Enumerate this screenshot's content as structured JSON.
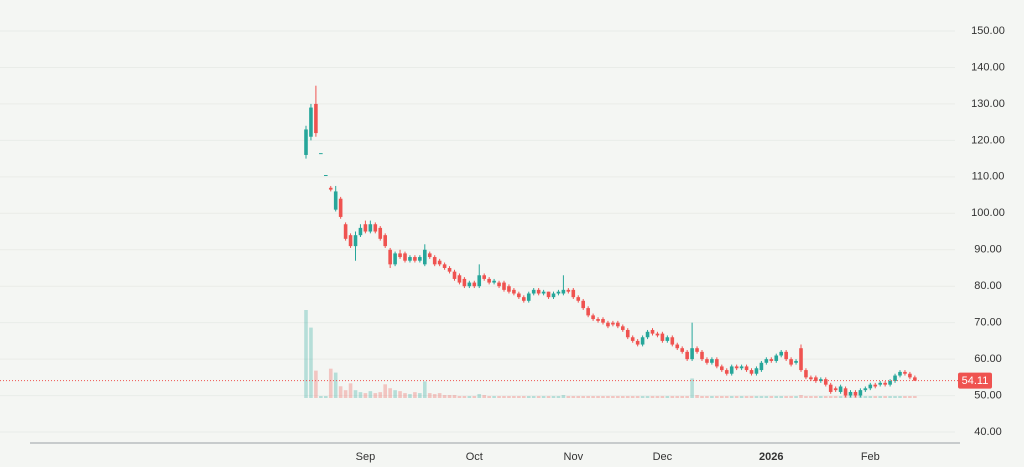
{
  "chart_data": {
    "type": "candlestick",
    "categories": [
      null,
      null,
      null,
      null,
      null,
      null,
      null,
      null,
      null,
      null,
      null,
      null,
      "Sep",
      null,
      null,
      null,
      null,
      null,
      null,
      null,
      null,
      null,
      null,
      null,
      null,
      null,
      null,
      null,
      null,
      null,
      null,
      null,
      null,
      null,
      "Oct",
      null,
      null,
      null,
      null,
      null,
      null,
      null,
      null,
      null,
      null,
      null,
      null,
      null,
      null,
      null,
      null,
      null,
      null,
      null,
      "Nov",
      null,
      null,
      null,
      null,
      null,
      null,
      null,
      null,
      null,
      null,
      null,
      null,
      null,
      null,
      null,
      null,
      null,
      "Dec",
      null,
      null,
      null,
      null,
      null,
      null,
      null,
      null,
      null,
      null,
      null,
      null,
      null,
      null,
      null,
      null,
      null,
      null,
      null,
      null,
      null,
      "2026",
      null,
      null,
      null,
      null,
      null,
      null,
      null,
      null,
      null,
      null,
      null,
      null,
      null,
      null,
      null,
      null,
      null,
      null,
      null,
      "Feb",
      null,
      null,
      null,
      null,
      null,
      null,
      null,
      null,
      null
    ],
    "open": [
      116,
      121,
      130,
      116.5,
      110.5,
      107,
      101,
      104,
      97,
      94,
      91,
      94,
      97,
      95,
      97,
      96,
      94,
      90,
      86,
      89,
      89,
      87,
      88,
      87,
      86,
      89,
      88,
      87,
      86,
      85,
      84,
      83,
      82,
      80,
      81,
      80,
      83,
      82,
      81,
      81,
      81,
      80,
      79,
      78,
      77,
      76,
      78,
      79,
      78,
      78.5,
      77,
      78,
      78,
      79,
      79,
      77,
      76,
      74,
      72,
      71,
      71,
      70,
      70,
      70,
      69,
      68,
      66,
      65,
      64,
      66,
      68,
      67,
      67,
      65,
      66,
      64,
      63,
      62,
      60,
      63,
      62,
      60,
      59,
      60,
      58,
      57,
      56,
      58,
      57.5,
      58,
      57,
      56,
      57,
      59,
      60,
      59.5,
      61,
      62,
      60,
      59,
      63,
      57,
      55,
      55,
      54,
      54.5,
      53,
      52,
      51,
      52,
      50,
      51,
      50,
      51.5,
      52,
      53,
      53,
      53.5,
      53,
      54,
      55.5,
      56.5,
      56,
      55
    ],
    "high": [
      124,
      130,
      135,
      116.5,
      110.5,
      107.5,
      107.5,
      104.5,
      97.5,
      94.5,
      95,
      97,
      98,
      98,
      97.5,
      96.5,
      94.5,
      90.5,
      89.5,
      90,
      89.5,
      88.5,
      88.5,
      88.5,
      91.5,
      89.5,
      88.5,
      87.5,
      86.5,
      85.5,
      84.5,
      83.5,
      82.5,
      81.5,
      81.5,
      86,
      83.5,
      82.5,
      82,
      81.5,
      81.5,
      80.5,
      79.5,
      78.5,
      77.5,
      78.5,
      79.5,
      79.5,
      79,
      78.5,
      78.5,
      79,
      83,
      79.5,
      79.5,
      77.5,
      76.5,
      74.5,
      72.5,
      71.5,
      71.5,
      70.5,
      70.5,
      70.5,
      69.5,
      68.5,
      66.5,
      65.5,
      66.5,
      68,
      68.5,
      67.5,
      67.5,
      66.5,
      66.5,
      64.5,
      63.5,
      62.5,
      70,
      63.5,
      62.5,
      60.5,
      60.5,
      60.5,
      58.5,
      57.5,
      58.5,
      58.5,
      58.5,
      58.5,
      57.5,
      58,
      59.5,
      60.5,
      60.5,
      61.5,
      62.5,
      62.5,
      60.5,
      60,
      64,
      57.5,
      55.5,
      55.5,
      55,
      55,
      53.5,
      52.5,
      53,
      52.5,
      51.5,
      51.5,
      52,
      52.5,
      53.5,
      53.5,
      54,
      54,
      54.5,
      56,
      57,
      57,
      56.5,
      55.5
    ],
    "low": [
      115,
      120,
      121,
      116.5,
      110.5,
      106,
      100.5,
      98.5,
      92.5,
      90.5,
      87,
      93.5,
      94.5,
      94.5,
      94.5,
      92.5,
      90.5,
      85,
      85.5,
      87.5,
      86.5,
      86.5,
      86.5,
      86.5,
      85.5,
      87.5,
      85.5,
      85.5,
      84.5,
      83.5,
      81.5,
      80.5,
      79.5,
      79.5,
      79.5,
      79.5,
      81.5,
      80.5,
      80.5,
      79.5,
      78.5,
      78,
      77.5,
      76.5,
      75.5,
      75.5,
      77.5,
      77.5,
      77.5,
      76.5,
      76.5,
      77.5,
      77.5,
      78,
      76.5,
      75.5,
      73.5,
      71.5,
      70.5,
      70,
      69.5,
      68.5,
      69,
      68.5,
      67.5,
      65.5,
      64.5,
      63.5,
      63.5,
      65.5,
      66.5,
      66,
      64.5,
      64.5,
      63.5,
      62.5,
      61.5,
      59.5,
      59.5,
      61.5,
      59.5,
      58.5,
      58.5,
      57.5,
      56.5,
      55.5,
      55.5,
      57,
      57,
      56.5,
      55.5,
      55.5,
      56.5,
      58.5,
      59,
      59,
      60.5,
      59.5,
      58,
      58.5,
      56.5,
      54.5,
      54,
      53.5,
      53.5,
      52.5,
      50.5,
      51,
      50.5,
      49.5,
      49.5,
      49.5,
      49.5,
      51,
      51.5,
      52,
      52.5,
      52.5,
      52.5,
      53.5,
      55,
      55.5,
      54.5,
      54
    ],
    "close": [
      123,
      129,
      122,
      116.5,
      110.5,
      106.5,
      106,
      99,
      93,
      91,
      94,
      96,
      95,
      97,
      95,
      93,
      91,
      86,
      89,
      88,
      87,
      88,
      87,
      88,
      90,
      88,
      86,
      86,
      85,
      84,
      82,
      81,
      80,
      81,
      80,
      83,
      82,
      81,
      81.5,
      80,
      79,
      78.5,
      78,
      77,
      76,
      78,
      79,
      78,
      78.5,
      77,
      78,
      78.5,
      79,
      78.5,
      77,
      76,
      74,
      72,
      71,
      70.5,
      70,
      69,
      69.5,
      69,
      68,
      66,
      65,
      64,
      66,
      67.5,
      67,
      66.5,
      65,
      66,
      64,
      63,
      62,
      60,
      63,
      62,
      60,
      59,
      60,
      58,
      57,
      56,
      58,
      57.5,
      58,
      57,
      56,
      57.5,
      59,
      60,
      59.5,
      61,
      62,
      60,
      58.5,
      59.5,
      57,
      55,
      54.5,
      54,
      54.5,
      53,
      51,
      51.5,
      52.5,
      50,
      51,
      50,
      51.5,
      52,
      53,
      52.5,
      53.5,
      53,
      54,
      55.5,
      56.5,
      56,
      55,
      54.11
    ],
    "volume": [
      90,
      72,
      28,
      2,
      2,
      30,
      26,
      12,
      8,
      15,
      8,
      6,
      5,
      7,
      5,
      6,
      14,
      10,
      8,
      7,
      5,
      4,
      6,
      5,
      17,
      5,
      4,
      5,
      3,
      3,
      3,
      2,
      2,
      2,
      2,
      4,
      3,
      2,
      2,
      2,
      2,
      2,
      2,
      2,
      2,
      2,
      2,
      2,
      2,
      2,
      2,
      2,
      3,
      2,
      2,
      2,
      2,
      2,
      2,
      2,
      2,
      2,
      2,
      2,
      2,
      2,
      2,
      2,
      2,
      2,
      2,
      2,
      2,
      2,
      2,
      2,
      2,
      2,
      20,
      3,
      2,
      2,
      2,
      2,
      2,
      2,
      2,
      2,
      2,
      2,
      2,
      2,
      2,
      2,
      2,
      2,
      2,
      2,
      2,
      2,
      3,
      2,
      2,
      2,
      2,
      2,
      2,
      2,
      2,
      2,
      2,
      2,
      2,
      2,
      2,
      2,
      2,
      2,
      2,
      2,
      2,
      2,
      2,
      2
    ],
    "up_color": "#26a69a",
    "down_color": "#ef5350",
    "last_price": 54.11,
    "ylim": [
      37,
      158.5
    ],
    "yticks": [
      {
        "value": 40,
        "label": "40.00"
      },
      {
        "value": 50,
        "label": "50.00"
      },
      {
        "value": 60,
        "label": "60.00"
      },
      {
        "value": 70,
        "label": "70.00"
      },
      {
        "value": 80,
        "label": "80.00"
      },
      {
        "value": 90,
        "label": "90.00"
      },
      {
        "value": 100,
        "label": "100.00"
      },
      {
        "value": 110,
        "label": "110.00"
      },
      {
        "value": 120,
        "label": "120.00"
      },
      {
        "value": 130,
        "label": "130.00"
      },
      {
        "value": 140,
        "label": "140.00"
      },
      {
        "value": 150,
        "label": "150.00"
      }
    ],
    "grid": true
  }
}
